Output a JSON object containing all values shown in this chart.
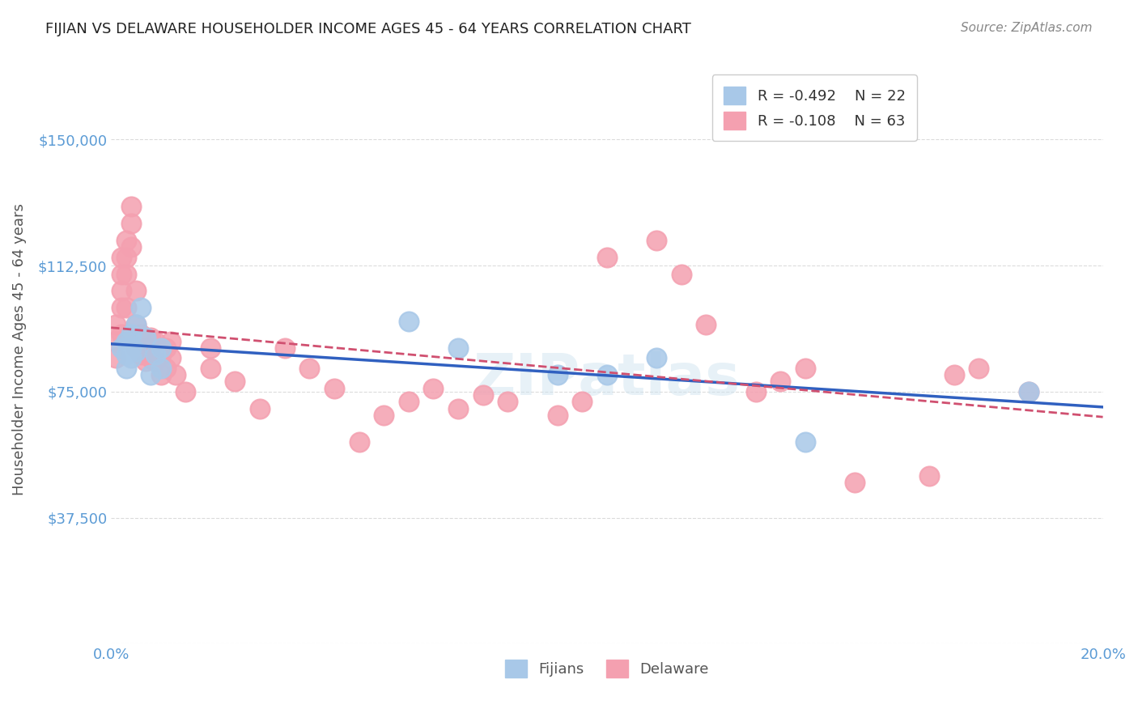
{
  "title": "FIJIAN VS DELAWARE HOUSEHOLDER INCOME AGES 45 - 64 YEARS CORRELATION CHART",
  "source": "Source: ZipAtlas.com",
  "xlabel_bottom": "",
  "ylabel": "Householder Income Ages 45 - 64 years",
  "xlim": [
    0.0,
    0.2
  ],
  "ylim": [
    0,
    175000
  ],
  "yticks": [
    0,
    37500,
    75000,
    112500,
    150000
  ],
  "ytick_labels": [
    "",
    "$37,500",
    "$75,000",
    "$112,500",
    "$150,000"
  ],
  "xticks": [
    0.0,
    0.04,
    0.08,
    0.12,
    0.16,
    0.2
  ],
  "xtick_labels": [
    "0.0%",
    "",
    "",
    "",
    "",
    "20.0%"
  ],
  "title_color": "#222222",
  "axis_color": "#5b9bd5",
  "tick_label_color": "#5b9bd5",
  "grid_color": "#cccccc",
  "background_color": "#ffffff",
  "legend_R1": "R = -0.492",
  "legend_N1": "N = 22",
  "legend_R2": "R = -0.108",
  "legend_N2": "N = 63",
  "fijian_color": "#a8c8e8",
  "delaware_color": "#f4a0b0",
  "fijian_line_color": "#3060c0",
  "delaware_line_color": "#d05070",
  "watermark": "ZIPatlas",
  "fijian_x": [
    0.002,
    0.003,
    0.003,
    0.003,
    0.004,
    0.004,
    0.004,
    0.005,
    0.005,
    0.006,
    0.007,
    0.008,
    0.009,
    0.01,
    0.01,
    0.06,
    0.07,
    0.09,
    0.1,
    0.11,
    0.14,
    0.185
  ],
  "fijian_y": [
    88000,
    90000,
    82000,
    86000,
    88000,
    85000,
    92000,
    95000,
    87000,
    100000,
    91000,
    80000,
    86000,
    88000,
    82000,
    96000,
    88000,
    80000,
    80000,
    85000,
    60000,
    75000
  ],
  "delaware_x": [
    0.001,
    0.001,
    0.001,
    0.002,
    0.002,
    0.002,
    0.002,
    0.002,
    0.003,
    0.003,
    0.003,
    0.003,
    0.004,
    0.004,
    0.004,
    0.005,
    0.005,
    0.005,
    0.006,
    0.006,
    0.007,
    0.007,
    0.008,
    0.008,
    0.008,
    0.009,
    0.009,
    0.01,
    0.01,
    0.011,
    0.011,
    0.012,
    0.012,
    0.013,
    0.015,
    0.02,
    0.02,
    0.025,
    0.03,
    0.035,
    0.04,
    0.045,
    0.05,
    0.055,
    0.06,
    0.065,
    0.07,
    0.075,
    0.08,
    0.09,
    0.095,
    0.1,
    0.11,
    0.115,
    0.12,
    0.13,
    0.135,
    0.14,
    0.15,
    0.165,
    0.17,
    0.175,
    0.185
  ],
  "delaware_y": [
    95000,
    90000,
    85000,
    115000,
    110000,
    105000,
    100000,
    92000,
    120000,
    115000,
    110000,
    100000,
    130000,
    125000,
    118000,
    105000,
    95000,
    88000,
    92000,
    86000,
    88000,
    84000,
    91000,
    88000,
    85000,
    90000,
    84000,
    86000,
    80000,
    88000,
    82000,
    90000,
    85000,
    80000,
    75000,
    88000,
    82000,
    78000,
    70000,
    88000,
    82000,
    76000,
    60000,
    68000,
    72000,
    76000,
    70000,
    74000,
    72000,
    68000,
    72000,
    115000,
    120000,
    110000,
    95000,
    75000,
    78000,
    82000,
    48000,
    50000,
    80000,
    82000,
    75000
  ]
}
